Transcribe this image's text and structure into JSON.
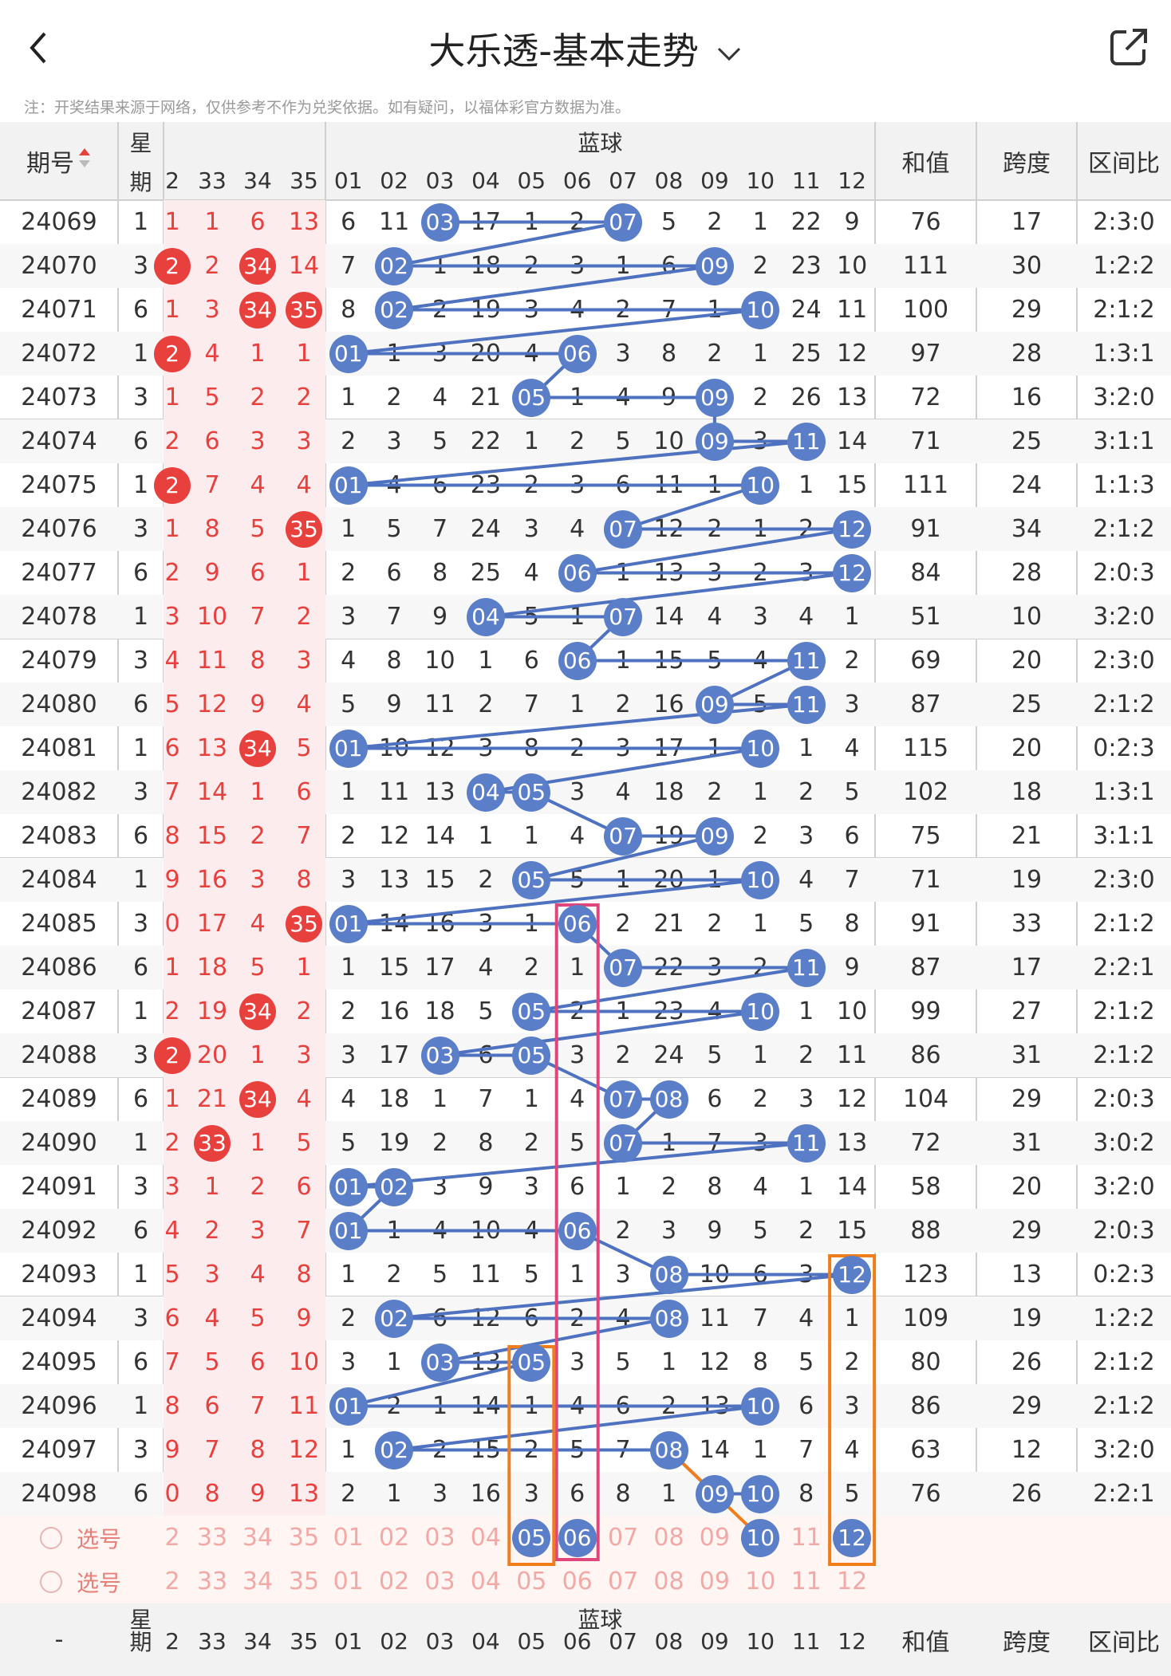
{
  "header": {
    "title": "大乐透-基本走势",
    "back_icon": "chevron-left-icon",
    "dropdown_icon": "chevron-down-icon",
    "share_icon": "share-icon"
  },
  "note": "注：开奖结果来源于网络，仅供参考不作为兑奖依据。如有疑问，以福体彩官方数据为准。",
  "table_header": {
    "period": "期号",
    "week_top": "星",
    "week_bottom": "期",
    "blue": "蓝球",
    "sum": "和值",
    "span": "跨度",
    "ratio": "区间比"
  },
  "front_cols": [
    "2",
    "33",
    "34",
    "35"
  ],
  "blue_cols": [
    "01",
    "02",
    "03",
    "04",
    "05",
    "06",
    "07",
    "08",
    "09",
    "10",
    "11",
    "12"
  ],
  "rows": [
    {
      "p": "24069",
      "w": "1",
      "f": [
        "1",
        "1",
        "6",
        "13"
      ],
      "fh": [],
      "b": [
        "6",
        "11",
        "03",
        "17",
        "1",
        "2",
        "07",
        "5",
        "2",
        "1",
        "22",
        "9"
      ],
      "bh": [
        3,
        7
      ],
      "s": "76",
      "sp": "17",
      "r": "2:3:0"
    },
    {
      "p": "24070",
      "w": "3",
      "f": [
        "2",
        "2",
        "34",
        "14"
      ],
      "fh": [
        1,
        3
      ],
      "b": [
        "7",
        "02",
        "1",
        "18",
        "2",
        "3",
        "1",
        "6",
        "09",
        "2",
        "23",
        "10"
      ],
      "bh": [
        2,
        9
      ],
      "s": "111",
      "sp": "30",
      "r": "1:2:2"
    },
    {
      "p": "24071",
      "w": "6",
      "f": [
        "1",
        "3",
        "34",
        "35"
      ],
      "fh": [
        3,
        4
      ],
      "b": [
        "8",
        "02",
        "2",
        "19",
        "3",
        "4",
        "2",
        "7",
        "1",
        "10",
        "24",
        "11"
      ],
      "bh": [
        2,
        10
      ],
      "s": "100",
      "sp": "29",
      "r": "2:1:2"
    },
    {
      "p": "24072",
      "w": "1",
      "f": [
        "2",
        "4",
        "1",
        "1"
      ],
      "fh": [
        1
      ],
      "b": [
        "01",
        "1",
        "3",
        "20",
        "4",
        "06",
        "3",
        "8",
        "2",
        "1",
        "25",
        "12"
      ],
      "bh": [
        1,
        6
      ],
      "s": "97",
      "sp": "28",
      "r": "1:3:1"
    },
    {
      "p": "24073",
      "w": "3",
      "f": [
        "1",
        "5",
        "2",
        "2"
      ],
      "fh": [],
      "b": [
        "1",
        "2",
        "4",
        "21",
        "05",
        "1",
        "4",
        "9",
        "09",
        "2",
        "26",
        "13"
      ],
      "bh": [
        5,
        9
      ],
      "s": "72",
      "sp": "16",
      "r": "3:2:0"
    },
    {
      "p": "24074",
      "w": "6",
      "f": [
        "2",
        "6",
        "3",
        "3"
      ],
      "fh": [],
      "b": [
        "2",
        "3",
        "5",
        "22",
        "1",
        "2",
        "5",
        "10",
        "09",
        "3",
        "11",
        "14"
      ],
      "bh": [
        9,
        11
      ],
      "s": "71",
      "sp": "25",
      "r": "3:1:1"
    },
    {
      "p": "24075",
      "w": "1",
      "f": [
        "2",
        "7",
        "4",
        "4"
      ],
      "fh": [
        1
      ],
      "b": [
        "01",
        "4",
        "6",
        "23",
        "2",
        "3",
        "6",
        "11",
        "1",
        "10",
        "1",
        "15"
      ],
      "bh": [
        1,
        10
      ],
      "s": "111",
      "sp": "24",
      "r": "1:1:3"
    },
    {
      "p": "24076",
      "w": "3",
      "f": [
        "1",
        "8",
        "5",
        "35"
      ],
      "fh": [
        4
      ],
      "b": [
        "1",
        "5",
        "7",
        "24",
        "3",
        "4",
        "07",
        "12",
        "2",
        "1",
        "2",
        "12"
      ],
      "bh": [
        7,
        12
      ],
      "s": "91",
      "sp": "34",
      "r": "2:1:2"
    },
    {
      "p": "24077",
      "w": "6",
      "f": [
        "2",
        "9",
        "6",
        "1"
      ],
      "fh": [],
      "b": [
        "2",
        "6",
        "8",
        "25",
        "4",
        "06",
        "1",
        "13",
        "3",
        "2",
        "3",
        "12"
      ],
      "bh": [
        6,
        12
      ],
      "s": "84",
      "sp": "28",
      "r": "2:0:3"
    },
    {
      "p": "24078",
      "w": "1",
      "f": [
        "3",
        "10",
        "7",
        "2"
      ],
      "fh": [],
      "b": [
        "3",
        "7",
        "9",
        "04",
        "5",
        "1",
        "07",
        "14",
        "4",
        "3",
        "4",
        "1"
      ],
      "bh": [
        4,
        7
      ],
      "s": "51",
      "sp": "10",
      "r": "3:2:0"
    },
    {
      "p": "24079",
      "w": "3",
      "f": [
        "4",
        "11",
        "8",
        "3"
      ],
      "fh": [],
      "b": [
        "4",
        "8",
        "10",
        "1",
        "6",
        "06",
        "1",
        "15",
        "5",
        "4",
        "11",
        "2"
      ],
      "bh": [
        6,
        11
      ],
      "s": "69",
      "sp": "20",
      "r": "2:3:0"
    },
    {
      "p": "24080",
      "w": "6",
      "f": [
        "5",
        "12",
        "9",
        "4"
      ],
      "fh": [],
      "b": [
        "5",
        "9",
        "11",
        "2",
        "7",
        "1",
        "2",
        "16",
        "09",
        "5",
        "11",
        "3"
      ],
      "bh": [
        9,
        11
      ],
      "s": "87",
      "sp": "25",
      "r": "2:1:2"
    },
    {
      "p": "24081",
      "w": "1",
      "f": [
        "6",
        "13",
        "34",
        "5"
      ],
      "fh": [
        3
      ],
      "b": [
        "01",
        "10",
        "12",
        "3",
        "8",
        "2",
        "3",
        "17",
        "1",
        "10",
        "1",
        "4"
      ],
      "bh": [
        1,
        10
      ],
      "s": "115",
      "sp": "20",
      "r": "0:2:3"
    },
    {
      "p": "24082",
      "w": "3",
      "f": [
        "7",
        "14",
        "1",
        "6"
      ],
      "fh": [],
      "b": [
        "1",
        "11",
        "13",
        "04",
        "05",
        "3",
        "4",
        "18",
        "2",
        "1",
        "2",
        "5"
      ],
      "bh": [
        4,
        5
      ],
      "s": "102",
      "sp": "18",
      "r": "1:3:1"
    },
    {
      "p": "24083",
      "w": "6",
      "f": [
        "8",
        "15",
        "2",
        "7"
      ],
      "fh": [],
      "b": [
        "2",
        "12",
        "14",
        "1",
        "1",
        "4",
        "07",
        "19",
        "09",
        "2",
        "3",
        "6"
      ],
      "bh": [
        7,
        9
      ],
      "s": "75",
      "sp": "21",
      "r": "3:1:1"
    },
    {
      "p": "24084",
      "w": "1",
      "f": [
        "9",
        "16",
        "3",
        "8"
      ],
      "fh": [],
      "b": [
        "3",
        "13",
        "15",
        "2",
        "05",
        "5",
        "1",
        "20",
        "1",
        "10",
        "4",
        "7"
      ],
      "bh": [
        5,
        10
      ],
      "s": "71",
      "sp": "19",
      "r": "2:3:0"
    },
    {
      "p": "24085",
      "w": "3",
      "f": [
        "0",
        "17",
        "4",
        "35"
      ],
      "fh": [
        4
      ],
      "b": [
        "01",
        "14",
        "16",
        "3",
        "1",
        "06",
        "2",
        "21",
        "2",
        "1",
        "5",
        "8"
      ],
      "bh": [
        1,
        6
      ],
      "s": "91",
      "sp": "33",
      "r": "2:1:2"
    },
    {
      "p": "24086",
      "w": "6",
      "f": [
        "1",
        "18",
        "5",
        "1"
      ],
      "fh": [],
      "b": [
        "1",
        "15",
        "17",
        "4",
        "2",
        "1",
        "07",
        "22",
        "3",
        "2",
        "11",
        "9"
      ],
      "bh": [
        7,
        11
      ],
      "s": "87",
      "sp": "17",
      "r": "2:2:1"
    },
    {
      "p": "24087",
      "w": "1",
      "f": [
        "2",
        "19",
        "34",
        "2"
      ],
      "fh": [
        3
      ],
      "b": [
        "2",
        "16",
        "18",
        "5",
        "05",
        "2",
        "1",
        "23",
        "4",
        "10",
        "1",
        "10"
      ],
      "bh": [
        5,
        10
      ],
      "s": "99",
      "sp": "27",
      "r": "2:1:2"
    },
    {
      "p": "24088",
      "w": "3",
      "f": [
        "2",
        "20",
        "1",
        "3"
      ],
      "fh": [
        1
      ],
      "b": [
        "3",
        "17",
        "03",
        "6",
        "05",
        "3",
        "2",
        "24",
        "5",
        "1",
        "2",
        "11"
      ],
      "bh": [
        3,
        5
      ],
      "s": "86",
      "sp": "31",
      "r": "2:1:2"
    },
    {
      "p": "24089",
      "w": "6",
      "f": [
        "1",
        "21",
        "34",
        "4"
      ],
      "fh": [
        3
      ],
      "b": [
        "4",
        "18",
        "1",
        "7",
        "1",
        "4",
        "07",
        "08",
        "6",
        "2",
        "3",
        "12"
      ],
      "bh": [
        7,
        8
      ],
      "s": "104",
      "sp": "29",
      "r": "2:0:3"
    },
    {
      "p": "24090",
      "w": "1",
      "f": [
        "2",
        "33",
        "1",
        "5"
      ],
      "fh": [
        2
      ],
      "b": [
        "5",
        "19",
        "2",
        "8",
        "2",
        "5",
        "07",
        "1",
        "7",
        "3",
        "11",
        "13"
      ],
      "bh": [
        7,
        11
      ],
      "s": "72",
      "sp": "31",
      "r": "3:0:2"
    },
    {
      "p": "24091",
      "w": "3",
      "f": [
        "3",
        "1",
        "2",
        "6"
      ],
      "fh": [],
      "b": [
        "01",
        "02",
        "3",
        "9",
        "3",
        "6",
        "1",
        "2",
        "8",
        "4",
        "1",
        "14"
      ],
      "bh": [
        1,
        2
      ],
      "s": "58",
      "sp": "20",
      "r": "3:2:0"
    },
    {
      "p": "24092",
      "w": "6",
      "f": [
        "4",
        "2",
        "3",
        "7"
      ],
      "fh": [],
      "b": [
        "01",
        "1",
        "4",
        "10",
        "4",
        "06",
        "2",
        "3",
        "9",
        "5",
        "2",
        "15"
      ],
      "bh": [
        1,
        6
      ],
      "s": "88",
      "sp": "29",
      "r": "2:0:3"
    },
    {
      "p": "24093",
      "w": "1",
      "f": [
        "5",
        "3",
        "4",
        "8"
      ],
      "fh": [],
      "b": [
        "1",
        "2",
        "5",
        "11",
        "5",
        "1",
        "3",
        "08",
        "10",
        "6",
        "3",
        "12"
      ],
      "bh": [
        8,
        12
      ],
      "s": "123",
      "sp": "13",
      "r": "0:2:3"
    },
    {
      "p": "24094",
      "w": "3",
      "f": [
        "6",
        "4",
        "5",
        "9"
      ],
      "fh": [],
      "b": [
        "2",
        "02",
        "6",
        "12",
        "6",
        "2",
        "4",
        "08",
        "11",
        "7",
        "4",
        "1"
      ],
      "bh": [
        2,
        8
      ],
      "s": "109",
      "sp": "19",
      "r": "1:2:2"
    },
    {
      "p": "24095",
      "w": "6",
      "f": [
        "7",
        "5",
        "6",
        "10"
      ],
      "fh": [],
      "b": [
        "3",
        "1",
        "03",
        "13",
        "05",
        "3",
        "5",
        "1",
        "12",
        "8",
        "5",
        "2"
      ],
      "bh": [
        3,
        5
      ],
      "s": "80",
      "sp": "26",
      "r": "2:1:2"
    },
    {
      "p": "24096",
      "w": "1",
      "f": [
        "8",
        "6",
        "7",
        "11"
      ],
      "fh": [],
      "b": [
        "01",
        "2",
        "1",
        "14",
        "1",
        "4",
        "6",
        "2",
        "13",
        "10",
        "6",
        "3"
      ],
      "bh": [
        1,
        10
      ],
      "s": "86",
      "sp": "29",
      "r": "2:1:2"
    },
    {
      "p": "24097",
      "w": "3",
      "f": [
        "9",
        "7",
        "8",
        "12"
      ],
      "fh": [],
      "b": [
        "1",
        "02",
        "2",
        "15",
        "2",
        "5",
        "7",
        "08",
        "14",
        "1",
        "7",
        "4"
      ],
      "bh": [
        2,
        8
      ],
      "s": "63",
      "sp": "12",
      "r": "3:2:0"
    },
    {
      "p": "24098",
      "w": "6",
      "f": [
        "0",
        "8",
        "9",
        "13"
      ],
      "fh": [],
      "b": [
        "2",
        "1",
        "3",
        "16",
        "3",
        "6",
        "8",
        "1",
        "09",
        "10",
        "8",
        "5"
      ],
      "bh": [
        9,
        10
      ],
      "s": "76",
      "sp": "26",
      "r": "2:2:1"
    }
  ],
  "pick_rows": [
    {
      "label": "选号",
      "f": [
        "2",
        "33",
        "34",
        "35"
      ],
      "b": [
        "01",
        "02",
        "03",
        "04",
        "05",
        "06",
        "07",
        "08",
        "09",
        "10",
        "11",
        "12"
      ],
      "bh": [
        5,
        6,
        10,
        12
      ]
    },
    {
      "label": "选号",
      "f": [
        "2",
        "33",
        "34",
        "35"
      ],
      "b": [
        "01",
        "02",
        "03",
        "04",
        "05",
        "06",
        "07",
        "08",
        "09",
        "10",
        "11",
        "12"
      ],
      "bh": []
    }
  ],
  "footer": {
    "period": "-",
    "week_top": "星",
    "week_bottom": "期",
    "blue": "蓝球",
    "sum": "和值",
    "span": "跨度",
    "ratio": "区间比"
  },
  "colors": {
    "blue_ball": "#5b7ec9",
    "red_ball": "#e8403d",
    "red_text": "#e8403d",
    "pink_bg": "#fdeced",
    "header_bg": "#f2f2f2",
    "pick_bg": "#fff5f3",
    "trend_line": "#4f72c0",
    "box_pink": "#e0457b",
    "box_orange": "#f07d1a"
  }
}
